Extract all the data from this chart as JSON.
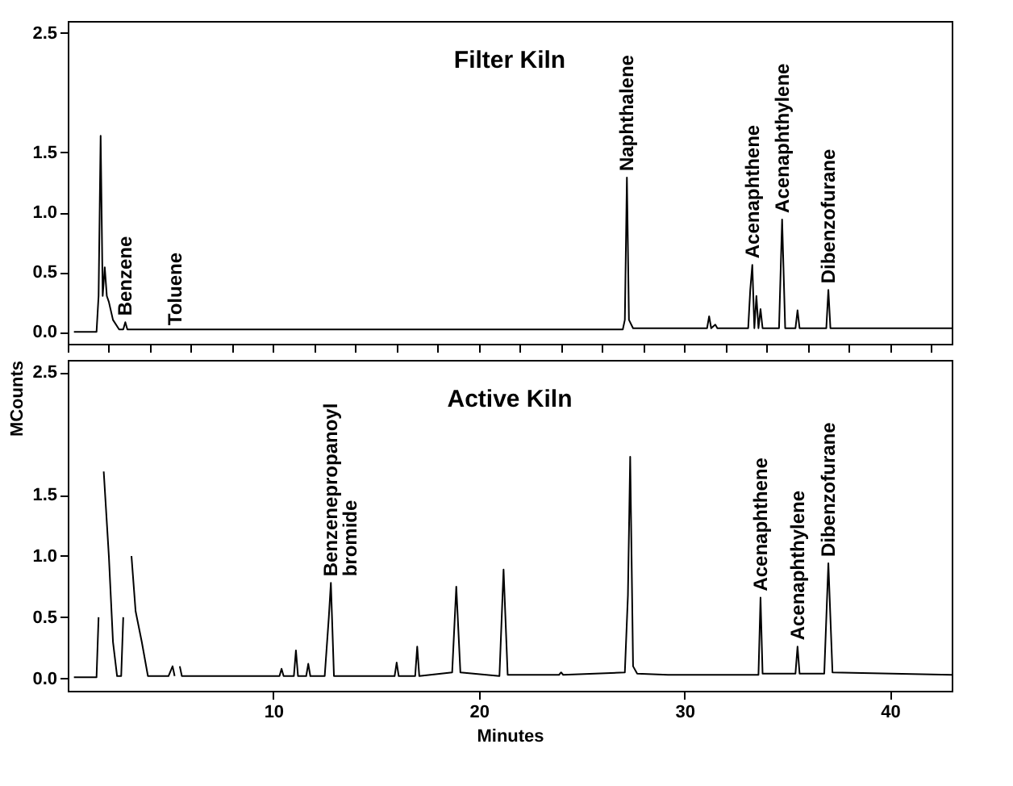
{
  "chart_data": [
    {
      "type": "line",
      "title": "Filter Kiln",
      "tick_labels": "y",
      "xlim": [
        0,
        43
      ],
      "ylim": [
        -0.1,
        2.6
      ],
      "yticks": [
        {
          "value": 0,
          "label": "0.0"
        },
        {
          "value": 0.5,
          "label": "0.5"
        },
        {
          "value": 1,
          "label": "1.0"
        },
        {
          "value": 1.5,
          "label": "1.5"
        },
        {
          "value": 2.5,
          "label": "2.5"
        }
      ],
      "line_style": "solid",
      "marker": "none",
      "grid": false,
      "series": [
        {
          "color": "#000000",
          "x": [
            0.3,
            1.4,
            1.5,
            1.6,
            1.7,
            1.8,
            1.9,
            2.0,
            2.2,
            2.5,
            2.7,
            2.8,
            2.9,
            3.2,
            27.0,
            27.1,
            27.2,
            27.3,
            27.5,
            31.1,
            31.2,
            31.3,
            31.5,
            31.6,
            33.1,
            33.2,
            33.3,
            33.4,
            33.5,
            33.6,
            33.7,
            33.8,
            34.3,
            34.6,
            34.75,
            34.9,
            35.4,
            35.5,
            35.6,
            36.9,
            37.0,
            37.1,
            43
          ],
          "values": [
            0,
            0,
            0.3,
            1.64,
            0.3,
            0.54,
            0.3,
            0.25,
            0.1,
            0.02,
            0.02,
            0.08,
            0.02,
            0.02,
            0.02,
            0.1,
            1.29,
            0.1,
            0.03,
            0.03,
            0.13,
            0.03,
            0.06,
            0.03,
            0.03,
            0.35,
            0.56,
            0.03,
            0.3,
            0.03,
            0.19,
            0.03,
            0.03,
            0.03,
            0.94,
            0.03,
            0.03,
            0.18,
            0.03,
            0.03,
            0.35,
            0.03,
            0.03
          ]
        }
      ],
      "annotations": [
        {
          "text": "Benzene",
          "x": 2.8,
          "y": 0.08
        },
        {
          "text": "Toluene",
          "x": 5.2,
          "y": 0
        },
        {
          "text": "Naphthalene",
          "x": 27.2,
          "y": 1.29
        },
        {
          "text": "Acenaphthene",
          "x": 33.3,
          "y": 0.56
        },
        {
          "text": "Acenaphthylene",
          "x": 34.75,
          "y": 0.94
        },
        {
          "text": "Dibenzofurane",
          "x": 37.0,
          "y": 0.35
        }
      ]
    },
    {
      "type": "line",
      "title": "Active Kiln",
      "xlabel": "Minutes",
      "ylabel": "MCounts",
      "xlim": [
        0,
        43
      ],
      "xticks": [
        10,
        20,
        30,
        40
      ],
      "ylim": [
        -0.1,
        2.6
      ],
      "yticks": [
        {
          "value": 0,
          "label": "0.0"
        },
        {
          "value": 0.5,
          "label": "0.5"
        },
        {
          "value": 1,
          "label": "1.0"
        },
        {
          "value": 1.5,
          "label": "1.5"
        },
        {
          "value": 2.5,
          "label": "2.5"
        }
      ],
      "line_style": "solid",
      "marker": "none",
      "grid": false,
      "series": [
        {
          "color": "#000000",
          "x": [
            0.3,
            1.4,
            1.5,
            1.56,
            1.65,
            1.75,
            2.0,
            2.2,
            2.4,
            2.6,
            2.7,
            2.8,
            2.9,
            3.1,
            3.3,
            3.6,
            3.9,
            4.9,
            5.1,
            5.2,
            5.3,
            5.34,
            5.45,
            5.55,
            10.3,
            10.4,
            10.5,
            11.0,
            11.1,
            11.2,
            11.6,
            11.7,
            11.8,
            12.5,
            12.7,
            12.8,
            12.95,
            15.9,
            16.0,
            16.1,
            16.9,
            17.0,
            17.1,
            18.7,
            18.9,
            19.1,
            21.0,
            21.2,
            21.4,
            23.9,
            24.0,
            24.1,
            27.1,
            27.25,
            27.36,
            27.5,
            27.7,
            29.2,
            33.6,
            33.7,
            33.8,
            35.4,
            35.5,
            35.6,
            36.8,
            37.0,
            37.2,
            43
          ],
          "values": [
            0.01,
            0.01,
            0.5,
            null,
            null,
            1.69,
            1.0,
            0.3,
            0.02,
            0.02,
            0.5,
            null,
            null,
            1.0,
            0.55,
            0.3,
            0.02,
            0.02,
            0.1,
            0.02,
            null,
            null,
            0.1,
            0.02,
            0.02,
            0.08,
            0.02,
            0.02,
            0.23,
            0.02,
            0.02,
            0.12,
            0.02,
            0.02,
            0.5,
            0.78,
            0.02,
            0.02,
            0.13,
            0.02,
            0.02,
            0.26,
            0.02,
            0.05,
            0.75,
            0.05,
            0.02,
            0.89,
            0.03,
            0.03,
            0.05,
            0.03,
            0.05,
            0.68,
            1.81,
            0.1,
            0.04,
            0.03,
            0.03,
            0.66,
            0.04,
            0.04,
            0.26,
            0.04,
            0.04,
            0.94,
            0.05,
            0.03
          ]
        }
      ],
      "annotations": [
        {
          "text": "Benzenepropanoyl bromide",
          "x": 12.8,
          "y": 0.78
        },
        {
          "text": "Acenaphthene",
          "x": 33.7,
          "y": 0.66
        },
        {
          "text": "Acenaphthylene",
          "x": 35.5,
          "y": 0.26
        },
        {
          "text": "Dibenzofurane",
          "x": 37.0,
          "y": 0.94
        }
      ]
    }
  ]
}
